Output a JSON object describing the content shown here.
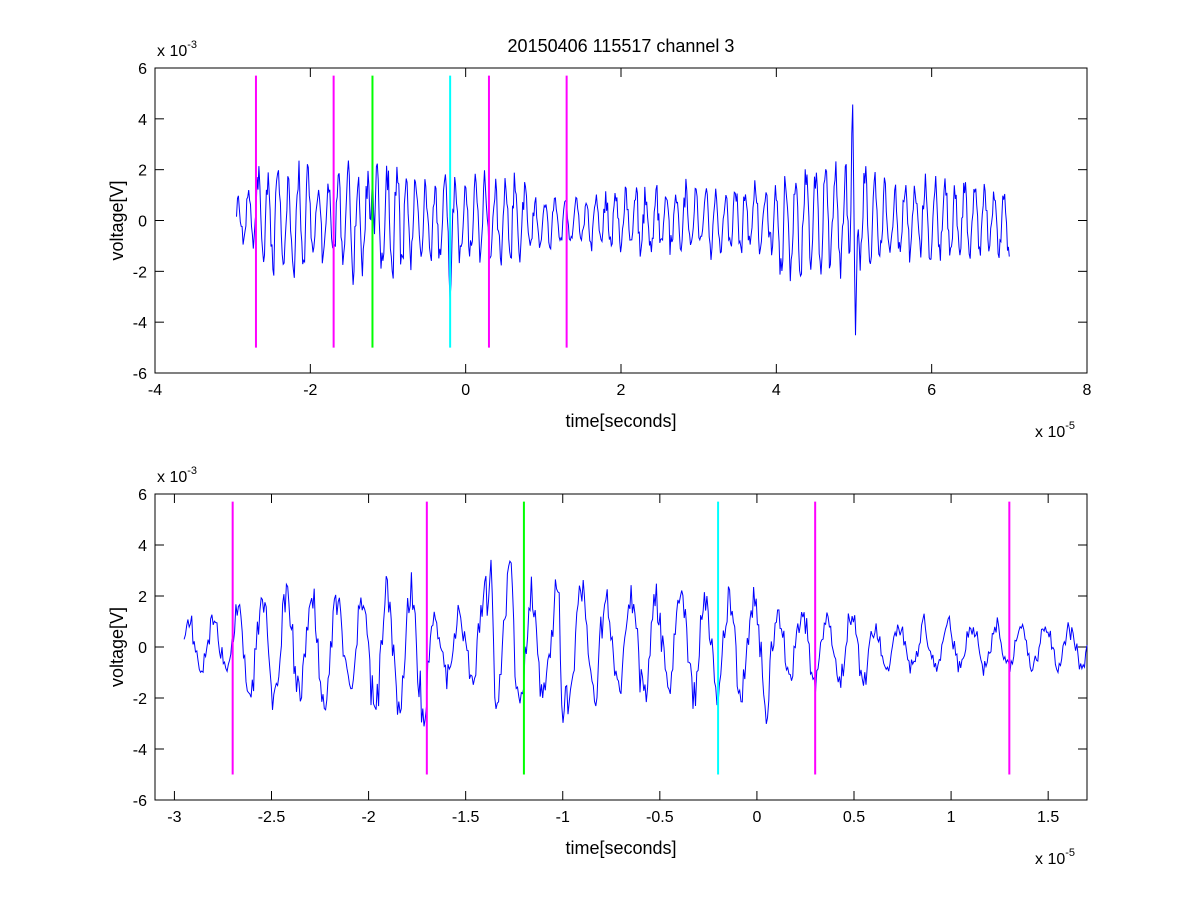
{
  "chart_data": [
    {
      "type": "line",
      "title": "20150406 115517 channel 3",
      "xlabel": "time[seconds]",
      "ylabel": "voltage[V]",
      "x_exponent": {
        "base": "x 10",
        "exp": "-5"
      },
      "y_exponent": {
        "base": "x 10",
        "exp": "-3"
      },
      "xlim": [
        -4,
        8
      ],
      "ylim": [
        -6,
        6
      ],
      "xticks": [
        -4,
        -2,
        0,
        2,
        4,
        6,
        8
      ],
      "xtick_labels": [
        "-4",
        "-2",
        "0",
        "2",
        "4",
        "6",
        "8"
      ],
      "yticks": [
        -6,
        -4,
        -2,
        0,
        2,
        4,
        6
      ],
      "ytick_labels": [
        "-6",
        "-4",
        "-2",
        "0",
        "2",
        "4",
        "6"
      ],
      "grid": false,
      "signal": {
        "color": "#0000ff",
        "x_start": -2.95,
        "x_end": 7.0,
        "segments": [
          {
            "x": [
              -2.95,
              -2.7
            ],
            "amp": 0.9
          },
          {
            "x": [
              -2.7,
              -2.0
            ],
            "amp": 1.9
          },
          {
            "x": [
              -2.0,
              -1.7
            ],
            "amp": 1.3
          },
          {
            "x": [
              -1.7,
              -0.8
            ],
            "amp": 1.9
          },
          {
            "x": [
              -0.8,
              0.8
            ],
            "amp": 1.4
          },
          {
            "x": [
              0.8,
              1.6
            ],
            "amp": 0.8
          },
          {
            "x": [
              1.6,
              4.0
            ],
            "amp": 1.1
          },
          {
            "x": [
              4.0,
              5.3
            ],
            "amp": 1.8
          },
          {
            "x": [
              5.3,
              7.0
            ],
            "amp": 1.3
          }
        ],
        "peaks": [
          {
            "x": 4.98,
            "y": 5.2
          },
          {
            "x": 5.02,
            "y": -4.6
          },
          {
            "x": -1.2,
            "y": 2.2
          },
          {
            "x": -0.2,
            "y": -3.2
          }
        ]
      },
      "markers": [
        {
          "x": -2.7,
          "y": [
            -5,
            5.7
          ],
          "color": "#ff00ff"
        },
        {
          "x": -1.7,
          "y": [
            -5,
            5.7
          ],
          "color": "#ff00ff"
        },
        {
          "x": -1.2,
          "y": [
            -5,
            5.7
          ],
          "color": "#00ff00"
        },
        {
          "x": -0.2,
          "y": [
            -5,
            5.7
          ],
          "color": "#00ffff"
        },
        {
          "x": 0.3,
          "y": [
            -5,
            5.7
          ],
          "color": "#ff00ff"
        },
        {
          "x": 1.3,
          "y": [
            -5,
            5.7
          ],
          "color": "#ff00ff"
        }
      ]
    },
    {
      "type": "line",
      "title": "",
      "xlabel": "time[seconds]",
      "ylabel": "voltage[V]",
      "x_exponent": {
        "base": "x 10",
        "exp": "-5"
      },
      "y_exponent": {
        "base": "x 10",
        "exp": "-3"
      },
      "xlim": [
        -3.1,
        1.7
      ],
      "ylim": [
        -6,
        6
      ],
      "xticks": [
        -3,
        -2.5,
        -2,
        -1.5,
        -1,
        -0.5,
        0,
        0.5,
        1,
        1.5
      ],
      "xtick_labels": [
        "-3",
        "-2.5",
        "-2",
        "-1.5",
        "-1",
        "-0.5",
        "0",
        "0.5",
        "1",
        "1.5"
      ],
      "yticks": [
        -6,
        -4,
        -2,
        0,
        2,
        4,
        6
      ],
      "ytick_labels": [
        "-6",
        "-4",
        "-2",
        "0",
        "2",
        "4",
        "6"
      ],
      "grid": false,
      "signal": {
        "color": "#0000ff",
        "x_start": -2.95,
        "x_end": 1.7,
        "segments": [
          {
            "x": [
              -2.95,
              -2.7
            ],
            "amp": 0.9
          },
          {
            "x": [
              -2.7,
              -2.0
            ],
            "amp": 1.9
          },
          {
            "x": [
              -2.0,
              -1.7
            ],
            "amp": 2.4
          },
          {
            "x": [
              -1.7,
              -1.45
            ],
            "amp": 1.2
          },
          {
            "x": [
              -1.45,
              -0.8
            ],
            "amp": 2.2
          },
          {
            "x": [
              -0.8,
              0.0
            ],
            "amp": 1.8
          },
          {
            "x": [
              0.0,
              0.6
            ],
            "amp": 1.3
          },
          {
            "x": [
              0.6,
              1.7
            ],
            "amp": 0.8
          }
        ],
        "peaks": [
          {
            "x": -1.37,
            "y": 3.5
          },
          {
            "x": -1.27,
            "y": 3.6
          },
          {
            "x": -1.0,
            "y": -3.1
          },
          {
            "x": 0.05,
            "y": -3.2
          }
        ]
      },
      "markers": [
        {
          "x": -2.7,
          "y": [
            -5,
            5.7
          ],
          "color": "#ff00ff"
        },
        {
          "x": -1.7,
          "y": [
            -5,
            5.7
          ],
          "color": "#ff00ff"
        },
        {
          "x": -1.2,
          "y": [
            -5,
            5.7
          ],
          "color": "#00ff00"
        },
        {
          "x": -0.2,
          "y": [
            -5,
            5.7
          ],
          "color": "#00ffff"
        },
        {
          "x": 0.3,
          "y": [
            -5,
            5.7
          ],
          "color": "#ff00ff"
        },
        {
          "x": 1.3,
          "y": [
            -5,
            5.7
          ],
          "color": "#ff00ff"
        }
      ]
    }
  ]
}
